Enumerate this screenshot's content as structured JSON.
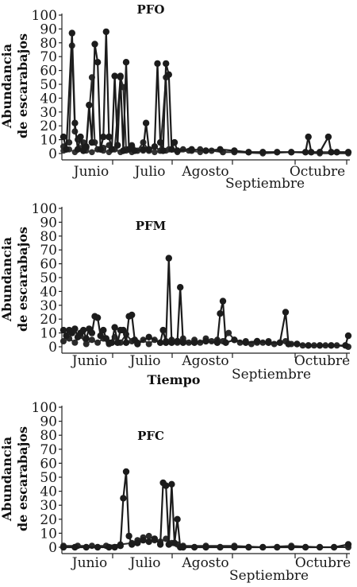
{
  "x_label_between": "Tiempo",
  "chart_data": [
    {
      "type": "line",
      "title": "PFO",
      "ylabel_lines": [
        "Abundancia",
        "de escarabajos"
      ],
      "xlabel": "",
      "ylim": [
        0,
        100
      ],
      "yticks": [
        0,
        10,
        20,
        30,
        40,
        50,
        60,
        70,
        80,
        90,
        100
      ],
      "xlim": [
        0,
        100
      ],
      "categories": [
        "Junio",
        "Julio",
        "Agosto",
        "Septiembre",
        "Octubre"
      ],
      "series": [
        {
          "values": [
            [
              0,
              12
            ],
            [
              1,
              3
            ],
            [
              3,
              87
            ],
            [
              4,
              22
            ],
            [
              5,
              3
            ],
            [
              6,
              12
            ],
            [
              7,
              2
            ],
            [
              8,
              5
            ],
            [
              9,
              35
            ],
            [
              10,
              8
            ],
            [
              11,
              79
            ],
            [
              12,
              66
            ],
            [
              13,
              3
            ],
            [
              14,
              12
            ],
            [
              15,
              88
            ],
            [
              16,
              12
            ],
            [
              17,
              3
            ],
            [
              18,
              56
            ],
            [
              19,
              6
            ],
            [
              20,
              56
            ],
            [
              21,
              2
            ],
            [
              22,
              66
            ],
            [
              23,
              3
            ],
            [
              24,
              5
            ],
            [
              25,
              2
            ],
            [
              28,
              3
            ],
            [
              29,
              22
            ],
            [
              30,
              3
            ],
            [
              32,
              5
            ],
            [
              33,
              65
            ],
            [
              34,
              8
            ],
            [
              35,
              2
            ],
            [
              36,
              65
            ],
            [
              37,
              57
            ],
            [
              38,
              3
            ],
            [
              39,
              8
            ],
            [
              40,
              2
            ],
            [
              45,
              3
            ],
            [
              50,
              2
            ],
            [
              55,
              3
            ],
            [
              60,
              2
            ],
            [
              65,
              1
            ],
            [
              70,
              1
            ],
            [
              75,
              1
            ],
            [
              80,
              1
            ],
            [
              85,
              1
            ],
            [
              86,
              12
            ],
            [
              87,
              1
            ],
            [
              90,
              1
            ],
            [
              93,
              12
            ],
            [
              94,
              1
            ],
            [
              96,
              1
            ],
            [
              100,
              1
            ]
          ]
        },
        {
          "values": [
            [
              0,
              5
            ],
            [
              2,
              8
            ],
            [
              3,
              78
            ],
            [
              4,
              16
            ],
            [
              5,
              10
            ],
            [
              7,
              8
            ],
            [
              8,
              4
            ],
            [
              10,
              55
            ],
            [
              11,
              8
            ],
            [
              12,
              3
            ],
            [
              14,
              4
            ],
            [
              16,
              6
            ],
            [
              18,
              3
            ],
            [
              20,
              55
            ],
            [
              21,
              48
            ],
            [
              22,
              3
            ],
            [
              24,
              6
            ],
            [
              26,
              2
            ],
            [
              28,
              8
            ],
            [
              30,
              2
            ],
            [
              32,
              5
            ],
            [
              34,
              2
            ],
            [
              36,
              55
            ],
            [
              37,
              3
            ],
            [
              38,
              3
            ],
            [
              40,
              2
            ],
            [
              42,
              3
            ],
            [
              45,
              2
            ],
            [
              48,
              3
            ],
            [
              52,
              2
            ],
            [
              56,
              1
            ],
            [
              60,
              1
            ],
            [
              65,
              1
            ],
            [
              70,
              1
            ],
            [
              80,
              1
            ],
            [
              90,
              1
            ],
            [
              100,
              1
            ]
          ]
        },
        {
          "values": [
            [
              0,
              2
            ],
            [
              2,
              3
            ],
            [
              4,
              1
            ],
            [
              6,
              4
            ],
            [
              8,
              2
            ],
            [
              10,
              1
            ],
            [
              12,
              3
            ],
            [
              14,
              2
            ],
            [
              16,
              1
            ],
            [
              18,
              3
            ],
            [
              20,
              1
            ],
            [
              22,
              2
            ],
            [
              24,
              1
            ],
            [
              28,
              2
            ],
            [
              32,
              1
            ],
            [
              36,
              2
            ],
            [
              40,
              1
            ],
            [
              44,
              2
            ],
            [
              48,
              1
            ],
            [
              52,
              2
            ],
            [
              56,
              1
            ],
            [
              60,
              1
            ],
            [
              70,
              0
            ],
            [
              80,
              1
            ],
            [
              90,
              0
            ],
            [
              100,
              0
            ]
          ]
        }
      ]
    },
    {
      "type": "line",
      "title": "PFM",
      "ylabel_lines": [
        "Abundancia",
        "de escarabajos"
      ],
      "xlabel": "",
      "ylim": [
        0,
        100
      ],
      "yticks": [
        0,
        10,
        20,
        30,
        40,
        50,
        60,
        70,
        80,
        90,
        100
      ],
      "xlim": [
        0,
        100
      ],
      "categories": [
        "Junio",
        "Julio",
        "Agosto",
        "Septiembre",
        "Octubre"
      ],
      "series": [
        {
          "values": [
            [
              0,
              12
            ],
            [
              1,
              8
            ],
            [
              2,
              12
            ],
            [
              3,
              10
            ],
            [
              4,
              13
            ],
            [
              5,
              7
            ],
            [
              6,
              10
            ],
            [
              7,
              12
            ],
            [
              8,
              6
            ],
            [
              9,
              13
            ],
            [
              10,
              10
            ],
            [
              11,
              22
            ],
            [
              12,
              21
            ],
            [
              13,
              8
            ],
            [
              14,
              12
            ],
            [
              15,
              6
            ],
            [
              16,
              3
            ],
            [
              17,
              3
            ],
            [
              18,
              14
            ],
            [
              19,
              3
            ],
            [
              20,
              12
            ],
            [
              21,
              12
            ],
            [
              22,
              3
            ],
            [
              23,
              22
            ],
            [
              24,
              23
            ],
            [
              25,
              5
            ],
            [
              26,
              2
            ],
            [
              30,
              7
            ],
            [
              34,
              3
            ],
            [
              35,
              12
            ],
            [
              36,
              3
            ],
            [
              37,
              64
            ],
            [
              38,
              3
            ],
            [
              40,
              4
            ],
            [
              41,
              43
            ],
            [
              42,
              3
            ],
            [
              46,
              3
            ],
            [
              50,
              4
            ],
            [
              54,
              3
            ],
            [
              55,
              24
            ],
            [
              56,
              33
            ],
            [
              57,
              3
            ],
            [
              60,
              5
            ],
            [
              64,
              3
            ],
            [
              68,
              4
            ],
            [
              72,
              3
            ],
            [
              76,
              3
            ],
            [
              78,
              25
            ],
            [
              79,
              2
            ],
            [
              82,
              2
            ],
            [
              86,
              1
            ],
            [
              90,
              1
            ],
            [
              94,
              1
            ],
            [
              99,
              1
            ],
            [
              100,
              8
            ]
          ]
        },
        {
          "values": [
            [
              0,
              4
            ],
            [
              2,
              6
            ],
            [
              4,
              3
            ],
            [
              6,
              8
            ],
            [
              8,
              2
            ],
            [
              10,
              5
            ],
            [
              12,
              3
            ],
            [
              14,
              6
            ],
            [
              16,
              2
            ],
            [
              18,
              7
            ],
            [
              20,
              3
            ],
            [
              22,
              9
            ],
            [
              24,
              4
            ],
            [
              26,
              3
            ],
            [
              28,
              5
            ],
            [
              30,
              2
            ],
            [
              32,
              5
            ],
            [
              34,
              3
            ],
            [
              36,
              4
            ],
            [
              38,
              5
            ],
            [
              40,
              3
            ],
            [
              42,
              6
            ],
            [
              44,
              3
            ],
            [
              46,
              5
            ],
            [
              48,
              3
            ],
            [
              50,
              6
            ],
            [
              52,
              4
            ],
            [
              54,
              5
            ],
            [
              56,
              4
            ],
            [
              58,
              10
            ],
            [
              60,
              5
            ],
            [
              62,
              3
            ],
            [
              64,
              4
            ],
            [
              66,
              2
            ],
            [
              68,
              3
            ],
            [
              70,
              3
            ],
            [
              72,
              4
            ],
            [
              74,
              2
            ],
            [
              76,
              3
            ],
            [
              78,
              4
            ],
            [
              80,
              2
            ],
            [
              84,
              1
            ],
            [
              88,
              1
            ],
            [
              92,
              1
            ],
            [
              96,
              1
            ],
            [
              100,
              0
            ]
          ]
        }
      ]
    },
    {
      "type": "line",
      "title": "PFC",
      "ylabel_lines": [
        "Abundancia",
        "de escarabajos"
      ],
      "xlabel": "",
      "ylim": [
        0,
        100
      ],
      "yticks": [
        0,
        10,
        20,
        30,
        40,
        50,
        60,
        70,
        80,
        90,
        100
      ],
      "xlim": [
        0,
        100
      ],
      "categories": [
        "Junio",
        "Julio",
        "Agosto",
        "Septiembre",
        "Octubre"
      ],
      "series": [
        {
          "values": [
            [
              0,
              0
            ],
            [
              4,
              0
            ],
            [
              8,
              0
            ],
            [
              12,
              0
            ],
            [
              16,
              0
            ],
            [
              18,
              0
            ],
            [
              20,
              1
            ],
            [
              21,
              35
            ],
            [
              22,
              54
            ],
            [
              23,
              8
            ],
            [
              24,
              2
            ],
            [
              26,
              3
            ],
            [
              28,
              5
            ],
            [
              30,
              4
            ],
            [
              32,
              6
            ],
            [
              34,
              2
            ],
            [
              35,
              46
            ],
            [
              36,
              44
            ],
            [
              37,
              2
            ],
            [
              38,
              45
            ],
            [
              39,
              3
            ],
            [
              40,
              20
            ],
            [
              41,
              0
            ],
            [
              42,
              0
            ],
            [
              46,
              0
            ],
            [
              50,
              0
            ],
            [
              55,
              0
            ],
            [
              60,
              0
            ],
            [
              65,
              0
            ],
            [
              70,
              0
            ],
            [
              75,
              0
            ],
            [
              80,
              0
            ],
            [
              85,
              0
            ],
            [
              90,
              0
            ],
            [
              95,
              0
            ],
            [
              100,
              2
            ]
          ]
        },
        {
          "values": [
            [
              0,
              1
            ],
            [
              5,
              1
            ],
            [
              10,
              1
            ],
            [
              15,
              1
            ],
            [
              20,
              2
            ],
            [
              24,
              3
            ],
            [
              26,
              5
            ],
            [
              28,
              7
            ],
            [
              30,
              8
            ],
            [
              32,
              5
            ],
            [
              34,
              4
            ],
            [
              36,
              6
            ],
            [
              38,
              3
            ],
            [
              40,
              2
            ],
            [
              42,
              1
            ],
            [
              50,
              1
            ],
            [
              60,
              1
            ],
            [
              70,
              0
            ],
            [
              80,
              1
            ],
            [
              90,
              0
            ],
            [
              100,
              0
            ]
          ]
        }
      ]
    }
  ]
}
